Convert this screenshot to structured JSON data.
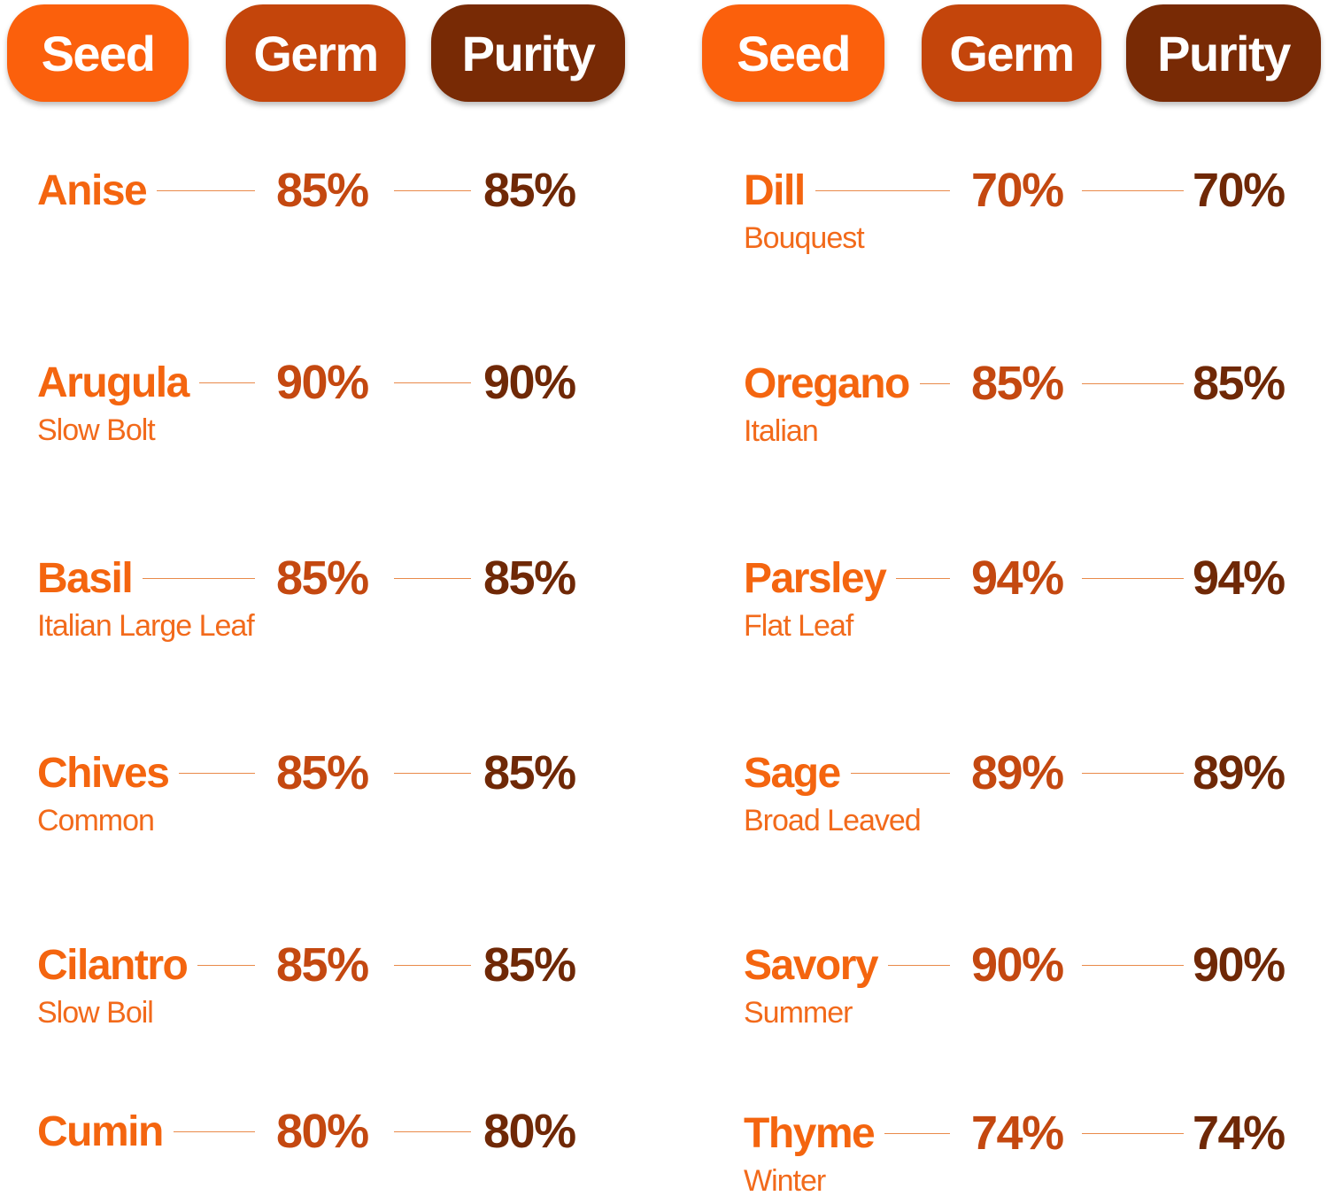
{
  "panels": [
    {
      "headers": [
        "Seed",
        "Germ",
        "Purity"
      ],
      "rows": [
        {
          "name": "Anise",
          "germ": "85%",
          "purity": "85%"
        },
        {
          "name": "Arugula",
          "variety": "Slow Bolt",
          "germ": "90%",
          "purity": "90%"
        },
        {
          "name": "Basil",
          "variety": "Italian Large Leaf",
          "germ": "85%",
          "purity": "85%"
        },
        {
          "name": "Chives",
          "variety": "Common",
          "germ": "85%",
          "purity": "85%"
        },
        {
          "name": "Cilantro",
          "variety": "Slow Boil",
          "germ": "85%",
          "purity": "85%"
        },
        {
          "name": "Cumin",
          "germ": "80%",
          "purity": "80%"
        }
      ]
    },
    {
      "headers": [
        "Seed",
        "Germ",
        "Purity"
      ],
      "rows": [
        {
          "name": "Dill",
          "variety": "Bouquest",
          "germ": "70%",
          "purity": "70%"
        },
        {
          "name": "Oregano",
          "variety": "Italian",
          "germ": "85%",
          "purity": "85%"
        },
        {
          "name": "Parsley",
          "variety": "Flat Leaf",
          "germ": "94%",
          "purity": "94%"
        },
        {
          "name": "Sage",
          "variety": "Broad Leaved",
          "germ": "89%",
          "purity": "89%"
        },
        {
          "name": "Savory",
          "variety": "Summer",
          "germ": "90%",
          "purity": "90%"
        },
        {
          "name": "Thyme",
          "variety": "Winter",
          "germ": "74%",
          "purity": "74%"
        }
      ]
    }
  ]
}
